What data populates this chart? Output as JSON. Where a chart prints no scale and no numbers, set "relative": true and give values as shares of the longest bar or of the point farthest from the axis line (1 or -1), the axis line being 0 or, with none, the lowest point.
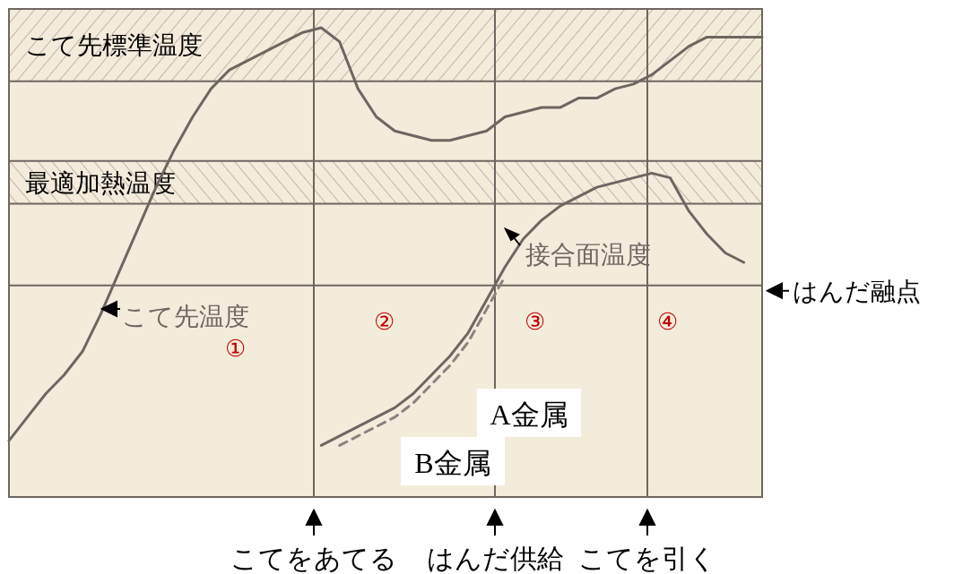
{
  "chart_data": {
    "type": "line",
    "relative": true,
    "categories": [
      null,
      null,
      null,
      null,
      null,
      null,
      null,
      null,
      null,
      null,
      null,
      null,
      null,
      null,
      null,
      null,
      null,
      null,
      null,
      null,
      null,
      null,
      null,
      null,
      null,
      null,
      null,
      null,
      null,
      null,
      null,
      null,
      null,
      null,
      null,
      null,
      null,
      null,
      null,
      null,
      null,
      null
    ],
    "series": [
      {
        "name": "こて先温度",
        "color": "#6e6660",
        "values": [
          0.12,
          0.17,
          0.22,
          0.26,
          0.31,
          0.39,
          0.48,
          0.57,
          0.66,
          0.74,
          0.81,
          0.87,
          0.91,
          0.93,
          0.95,
          0.97,
          0.99,
          1.0,
          0.97,
          0.87,
          0.81,
          0.78,
          0.77,
          0.76,
          0.76,
          0.77,
          0.78,
          0.81,
          0.82,
          0.83,
          0.83,
          0.85,
          0.85,
          0.87,
          0.88,
          0.9,
          0.93,
          0.96,
          0.98,
          0.98,
          0.98,
          0.98
        ]
      },
      {
        "name": "接合面温度",
        "color": "#6e6660",
        "values": [
          null,
          null,
          null,
          null,
          null,
          null,
          null,
          null,
          null,
          null,
          null,
          null,
          null,
          null,
          null,
          null,
          null,
          0.11,
          0.13,
          0.15,
          0.17,
          0.19,
          0.22,
          0.26,
          0.3,
          0.35,
          0.42,
          0.49,
          0.55,
          0.59,
          0.62,
          0.64,
          0.66,
          0.67,
          0.68,
          0.69,
          0.68,
          0.61,
          0.56,
          0.52,
          0.5,
          null
        ]
      },
      {
        "color": "#8a827c",
        "line_style": "dashed",
        "values": [
          null,
          null,
          null,
          null,
          null,
          null,
          null,
          null,
          null,
          null,
          null,
          null,
          null,
          null,
          null,
          null,
          null,
          null,
          0.11,
          0.13,
          0.15,
          0.17,
          0.2,
          0.24,
          0.28,
          0.33,
          0.4,
          0.47,
          null,
          null,
          null,
          null,
          null,
          null,
          null,
          null,
          null,
          null,
          null,
          null,
          null,
          null
        ]
      }
    ],
    "bands": [
      {
        "axis": "y",
        "from": 0.886,
        "to": 1.04,
        "label": "こて先標準温度",
        "color": "#9a9088"
      },
      {
        "axis": "y",
        "from": 0.625,
        "to": 0.716,
        "label": "最適加熱温度",
        "color": "#9a9088"
      }
    ],
    "ref_lines": [
      {
        "axis": "y",
        "value": 0.451,
        "label": "はんだ融点",
        "color": "#6e6660"
      }
    ],
    "annotations": [
      "①",
      "②",
      "③",
      "④",
      "A金属",
      "B金属",
      "こてをあてる",
      "はんだ供給",
      "こてを引く"
    ]
  }
}
